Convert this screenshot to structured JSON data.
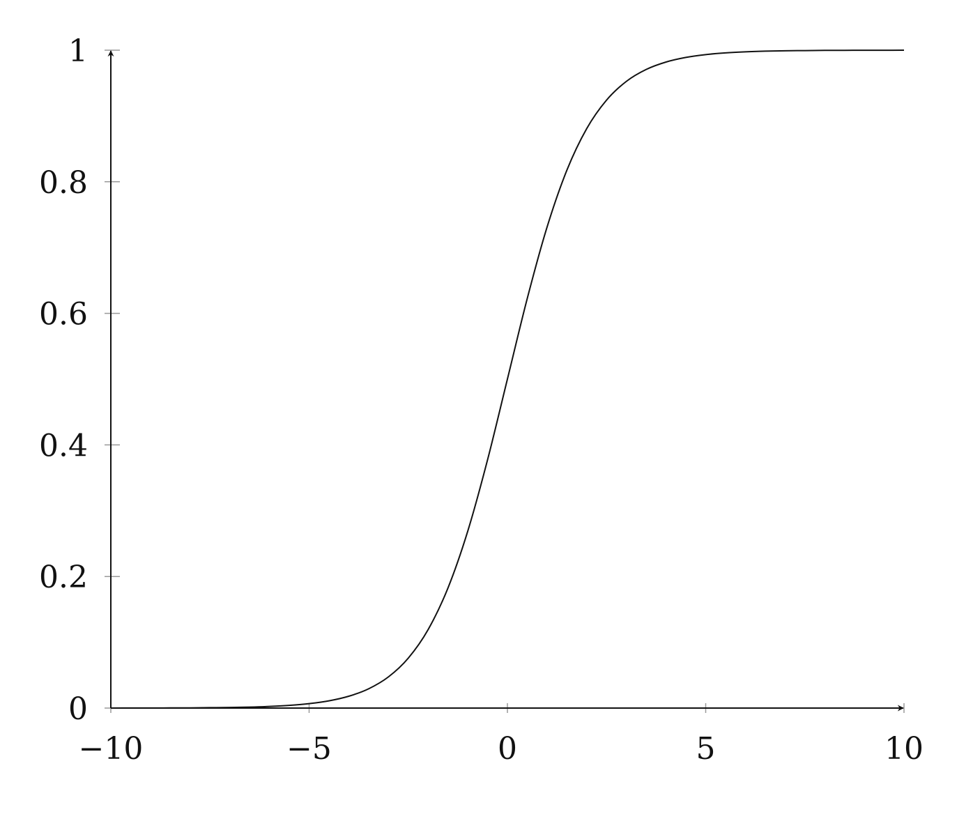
{
  "chart_data": {
    "type": "line",
    "title": "",
    "xlabel": "",
    "ylabel": "",
    "xlim": [
      -10,
      10
    ],
    "ylim": [
      0,
      1
    ],
    "x_ticks": [
      -10,
      -5,
      0,
      5,
      10
    ],
    "x_tick_labels": [
      "−10",
      "−5",
      "0",
      "5",
      "10"
    ],
    "y_ticks": [
      0,
      0.2,
      0.4,
      0.6,
      0.8,
      1
    ],
    "y_tick_labels": [
      "0",
      "0.2",
      "0.4",
      "0.6",
      "0.8",
      "1"
    ],
    "grid": false,
    "axis_arrows": true,
    "line_color": "#111111",
    "series": [
      {
        "x": [
          -10,
          -9.5,
          -9,
          -8.5,
          -8,
          -7.5,
          -7,
          -6.5,
          -6,
          -5.5,
          -5,
          -4.5,
          -4,
          -3.5,
          -3,
          -2.5,
          -2,
          -1.5,
          -1,
          -0.5,
          0,
          0.5,
          1,
          1.5,
          2,
          2.5,
          3,
          3.5,
          4,
          4.5,
          5,
          5.5,
          6,
          6.5,
          7,
          7.5,
          8,
          8.5,
          9,
          9.5,
          10
        ],
        "y": [
          0.0,
          0.0001,
          0.0001,
          0.0002,
          0.0003,
          0.0006,
          0.0009,
          0.0015,
          0.0025,
          0.0041,
          0.0067,
          0.011,
          0.018,
          0.0293,
          0.0474,
          0.0759,
          0.1192,
          0.1824,
          0.2689,
          0.3775,
          0.5,
          0.6225,
          0.7311,
          0.8176,
          0.8808,
          0.9241,
          0.9526,
          0.9707,
          0.982,
          0.989,
          0.9933,
          0.9959,
          0.9975,
          0.9985,
          0.9991,
          0.9994,
          0.9997,
          0.9998,
          0.9999,
          0.9999,
          1.0
        ]
      }
    ]
  }
}
